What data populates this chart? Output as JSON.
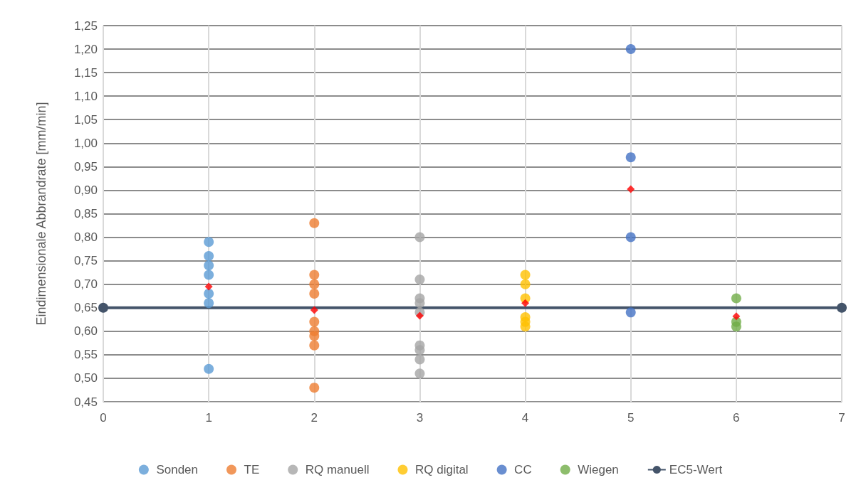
{
  "chart_data": {
    "type": "scatter",
    "ylabel": "Eindimensionale Abbrandrate [mm/min]",
    "xlim": [
      0,
      7
    ],
    "xticks": [
      0,
      1,
      2,
      3,
      4,
      5,
      6,
      7
    ],
    "ylim": [
      0.45,
      1.25
    ],
    "yticks": [
      {
        "value": 0.45,
        "label": "0,45"
      },
      {
        "value": 0.5,
        "label": "0,50"
      },
      {
        "value": 0.55,
        "label": "0,55"
      },
      {
        "value": 0.6,
        "label": "0,60"
      },
      {
        "value": 0.65,
        "label": "0,65"
      },
      {
        "value": 0.7,
        "label": "0,70"
      },
      {
        "value": 0.75,
        "label": "0,75"
      },
      {
        "value": 0.8,
        "label": "0,80"
      },
      {
        "value": 0.85,
        "label": "0,85"
      },
      {
        "value": 0.9,
        "label": "0,90"
      },
      {
        "value": 0.95,
        "label": "0,95"
      },
      {
        "value": 1.0,
        "label": "1,00"
      },
      {
        "value": 1.05,
        "label": "1,05"
      },
      {
        "value": 1.1,
        "label": "1,10"
      },
      {
        "value": 1.15,
        "label": "1,15"
      },
      {
        "value": 1.2,
        "label": "1,20"
      },
      {
        "value": 1.25,
        "label": "1,25"
      }
    ],
    "grid": true,
    "legend": "bottom",
    "marker": "circle",
    "series": [
      {
        "name": "Sonden",
        "color": "#5b9bd5",
        "x": [
          1,
          1,
          1,
          1,
          1,
          1,
          1
        ],
        "values": [
          0.79,
          0.76,
          0.74,
          0.72,
          0.68,
          0.66,
          0.52
        ]
      },
      {
        "name": "TE",
        "color": "#ed7d31",
        "x": [
          2,
          2,
          2,
          2,
          2,
          2,
          2,
          2,
          2
        ],
        "values": [
          0.83,
          0.72,
          0.7,
          0.68,
          0.62,
          0.6,
          0.59,
          0.57,
          0.48
        ]
      },
      {
        "name": "RQ manuell",
        "color": "#a5a5a5",
        "x": [
          3,
          3,
          3,
          3,
          3,
          3,
          3,
          3,
          3
        ],
        "values": [
          0.8,
          0.71,
          0.67,
          0.66,
          0.64,
          0.57,
          0.56,
          0.54,
          0.51
        ]
      },
      {
        "name": "RQ digital",
        "color": "#ffc000",
        "x": [
          4,
          4,
          4,
          4,
          4,
          4
        ],
        "values": [
          0.72,
          0.7,
          0.67,
          0.63,
          0.62,
          0.61
        ]
      },
      {
        "name": "CC",
        "color": "#4472c4",
        "x": [
          5,
          5,
          5,
          5
        ],
        "values": [
          1.2,
          0.97,
          0.8,
          0.64
        ]
      },
      {
        "name": "Wiegen",
        "color": "#70ad47",
        "x": [
          6,
          6,
          6
        ],
        "values": [
          0.67,
          0.62,
          0.61
        ]
      },
      {
        "name": "EC5-Wert",
        "type": "line",
        "color": "#44546a",
        "x": [
          0,
          7
        ],
        "values": [
          0.65,
          0.65
        ]
      },
      {
        "color": "#ff0000",
        "marker": "diamond",
        "x": [
          1,
          2,
          3,
          4,
          5,
          6
        ],
        "values": [
          0.695,
          0.645,
          0.633,
          0.66,
          0.902,
          0.632
        ]
      }
    ]
  }
}
